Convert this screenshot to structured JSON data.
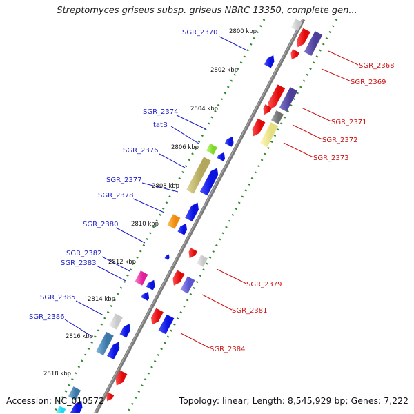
{
  "title": "Streptomyces griseus subsp. griseus NBRC 13350, complete gen...",
  "footer": {
    "accession": "Accession: NC_010572",
    "summary": "Topology: linear; Length: 8,545,929 bp; Genes: 7,222"
  },
  "colors": {
    "backbone": "#7a7a7a",
    "dots": "#2f8a2f",
    "label_left": "#1a1acc",
    "label_right": "#cc1111",
    "tick_text": "#111111"
  },
  "ticks": [
    "2800 kbp",
    "2802 kbp",
    "2804 kbp",
    "2806 kbp",
    "2808 kbp",
    "2810 kbp",
    "2812 kbp",
    "2814 kbp",
    "2816 kbp",
    "2818 kbp"
  ],
  "left_labels": [
    "SGR_2370",
    "SGR_2374",
    "tatB",
    "SGR_2376",
    "SGR_2377",
    "SGR_2378",
    "SGR_2380",
    "SGR_2382",
    "SGR_2383",
    "SGR_2385",
    "SGR_2386"
  ],
  "right_labels": [
    "SGR_2368",
    "SGR_2369",
    "SGR_2371",
    "SGR_2372",
    "SGR_2373",
    "SGR_2379",
    "SGR_2381",
    "SGR_2384"
  ],
  "feature_colors": [
    "blue",
    "red",
    "slate-blue",
    "khaki",
    "yellow",
    "green",
    "orange",
    "magenta",
    "light-gray",
    "steel-blue",
    "gray",
    "cyan"
  ]
}
